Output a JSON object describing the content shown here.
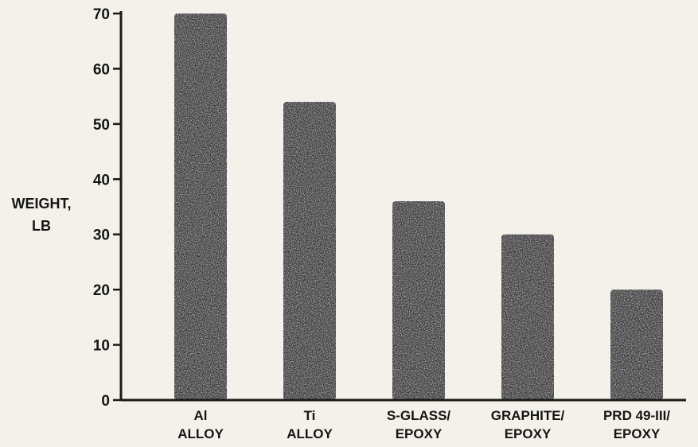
{
  "chart_data": {
    "type": "bar",
    "title": "",
    "xlabel": "",
    "ylabel": [
      "WEIGHT,",
      "LB"
    ],
    "ylim": [
      0,
      70
    ],
    "yticks": [
      "0",
      "10",
      "20",
      "30",
      "40",
      "50",
      "60",
      "70"
    ],
    "grid": false,
    "categories": [
      [
        "Al",
        "ALLOY"
      ],
      [
        "Ti",
        "ALLOY"
      ],
      [
        "S-GLASS/",
        "EPOXY"
      ],
      [
        "GRAPHITE/",
        "EPOXY"
      ],
      [
        "PRD 49-III/",
        "EPOXY"
      ]
    ],
    "values": [
      70,
      54,
      36,
      30,
      20
    ],
    "colors": {
      "bar": "#3a383a",
      "axis": "#1a1a1a",
      "background": "#f3f1ea"
    }
  }
}
